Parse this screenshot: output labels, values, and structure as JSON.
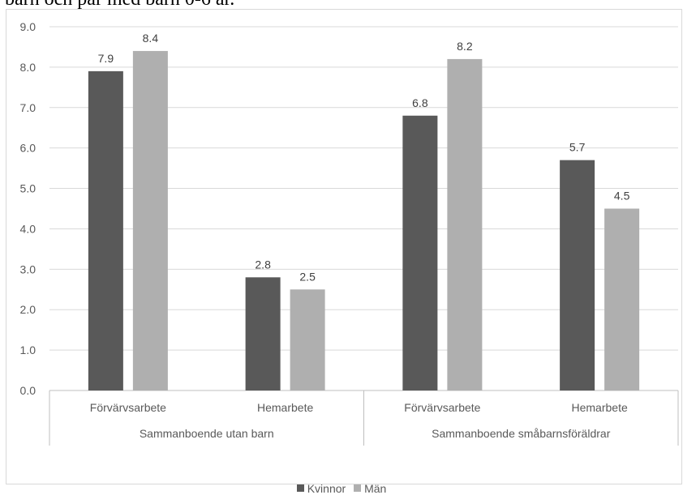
{
  "caption": "barn och par med barn 0-6 år.",
  "chart_data": {
    "type": "bar",
    "ylim": [
      0,
      9
    ],
    "yticks": [
      "0.0",
      "1.0",
      "2.0",
      "3.0",
      "4.0",
      "5.0",
      "6.0",
      "7.0",
      "8.0",
      "9.0"
    ],
    "groups": [
      {
        "label": "Sammanboende utan barn",
        "categories": [
          "Förvärvsarbete",
          "Hemarbete"
        ]
      },
      {
        "label": "Sammanboende småbarnsföräldrar",
        "categories": [
          "Förvärvsarbete",
          "Hemarbete"
        ]
      }
    ],
    "series": [
      {
        "name": "Kvinnor",
        "color": "#595959",
        "values": [
          7.9,
          2.8,
          6.8,
          5.7
        ]
      },
      {
        "name": "Män",
        "color": "#afafaf",
        "values": [
          8.4,
          2.5,
          8.2,
          4.5
        ]
      }
    ],
    "grid": true,
    "legend_position": "bottom"
  }
}
